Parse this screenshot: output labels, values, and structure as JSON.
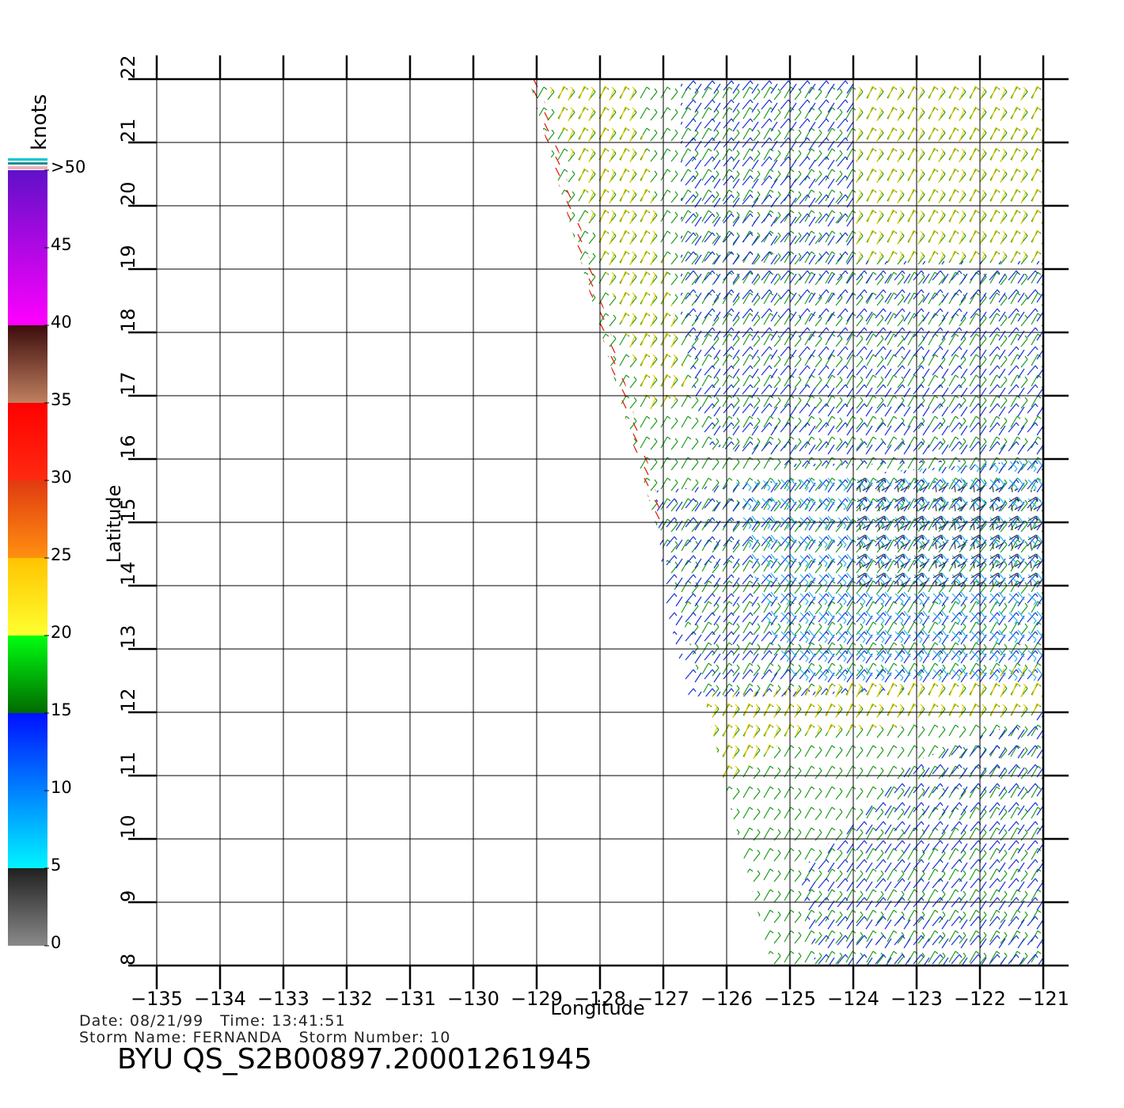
{
  "chart_data": {
    "type": "wind-map",
    "x_label": "Longitude",
    "y_label": "Latitude",
    "xlim": [
      -135,
      -121
    ],
    "ylim": [
      8,
      22
    ],
    "xticks": [
      {
        "value": -135,
        "label": "−135"
      },
      {
        "value": -134,
        "label": "−134"
      },
      {
        "value": -133,
        "label": "−133"
      },
      {
        "value": -132,
        "label": "−132"
      },
      {
        "value": -131,
        "label": "−131"
      },
      {
        "value": -130,
        "label": "−130"
      },
      {
        "value": -129,
        "label": "−129"
      },
      {
        "value": -128,
        "label": "−128"
      },
      {
        "value": -127,
        "label": "−127"
      },
      {
        "value": -126,
        "label": "−126"
      },
      {
        "value": -125,
        "label": "−125"
      },
      {
        "value": -124,
        "label": "−124"
      },
      {
        "value": -123,
        "label": "−123"
      },
      {
        "value": -122,
        "label": "−122"
      },
      {
        "value": -121,
        "label": "−121"
      }
    ],
    "yticks": [
      8,
      9,
      10,
      11,
      12,
      13,
      14,
      15,
      16,
      17,
      18,
      19,
      20,
      21,
      22
    ],
    "grid": true,
    "colorbar": {
      "label": "knots",
      "lim": [
        0,
        50
      ],
      "ticks": [
        0,
        5,
        10,
        15,
        20,
        25,
        30,
        35,
        40,
        45,
        {
          "value": 50,
          "label": ">50"
        }
      ],
      "segments": [
        {
          "range": [
            0,
            5
          ],
          "colors": [
            "#8a8a8a",
            "#202020"
          ]
        },
        {
          "range": [
            5,
            15
          ],
          "colors": [
            "#00f4ff",
            "#0010ff"
          ]
        },
        {
          "range": [
            15,
            20
          ],
          "colors": [
            "#006a00",
            "#00ff10"
          ]
        },
        {
          "range": [
            20,
            25
          ],
          "colors": [
            "#ffff30",
            "#ffc400"
          ]
        },
        {
          "range": [
            25,
            30
          ],
          "colors": [
            "#ff9010",
            "#e03a10"
          ]
        },
        {
          "range": [
            30,
            35
          ],
          "colors": [
            "#ff2a10",
            "#ff0000"
          ]
        },
        {
          "range": [
            35,
            40
          ],
          "colors": [
            "#c08060",
            "#3c0c0c"
          ]
        },
        {
          "range": [
            40,
            50
          ],
          "colors": [
            "#ff00ff",
            "#6010c8"
          ]
        }
      ]
    },
    "footer": {
      "line1": "Date: 08/21/99   Time: 13:41:51",
      "line2": "Storm Name: FERNANDA   Storm Number: 10",
      "title": "BYU QS_S2B00897.20001261945"
    }
  }
}
